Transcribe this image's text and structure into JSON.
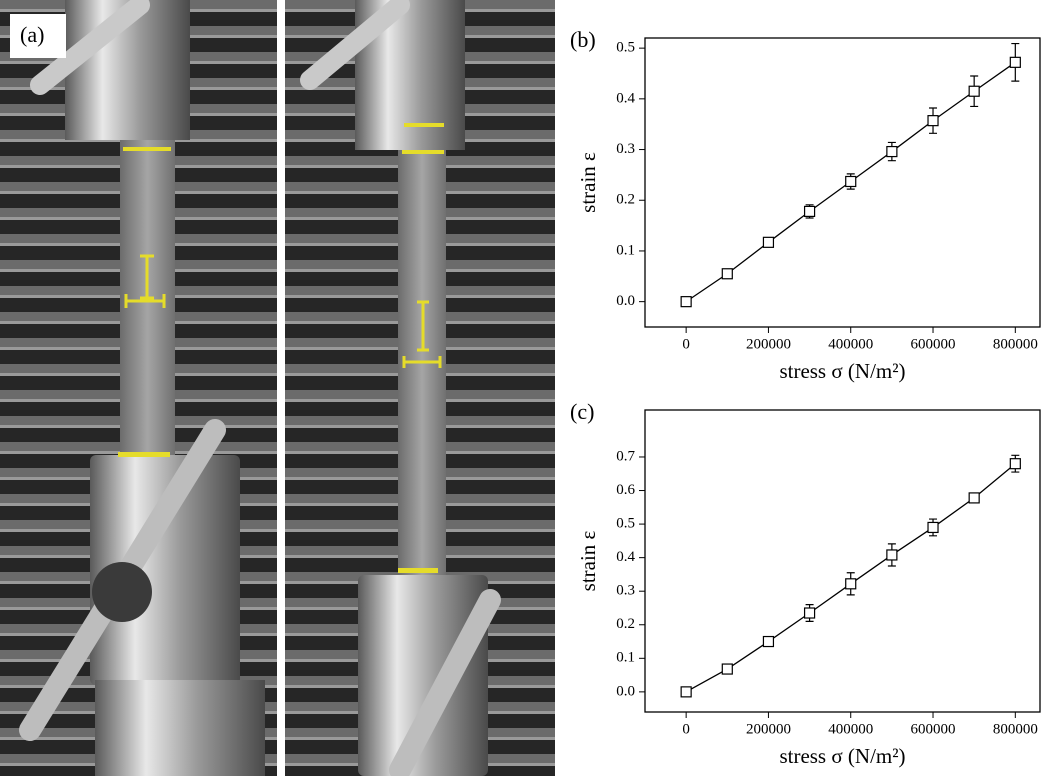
{
  "photo_label": "(a)",
  "chart_data": [
    {
      "type": "line",
      "panel_label": "(b)",
      "x_label": "stress σ (N/m²)",
      "y_label": "strain ε",
      "x": [
        0,
        100000,
        200000,
        300000,
        400000,
        500000,
        600000,
        700000,
        800000
      ],
      "series": [
        {
          "color": "#000000",
          "values": [
            0,
            0.055,
            0.117,
            0.178,
            0.237,
            0.296,
            0.357,
            0.415,
            0.472
          ],
          "error": [
            0.003,
            0.005,
            0.005,
            0.013,
            0.015,
            0.018,
            0.025,
            0.03,
            0.037
          ]
        }
      ],
      "xlim": [
        -100000,
        860000
      ],
      "ylim": [
        -0.05,
        0.52
      ],
      "xticks": [
        0,
        200000,
        400000,
        600000,
        800000
      ],
      "yticks": [
        {
          "value": 0,
          "label": "0.0"
        },
        0.1,
        0.2,
        0.3,
        0.4,
        0.5
      ]
    },
    {
      "type": "line",
      "panel_label": "(c)",
      "x_label": "stress σ (N/m²)",
      "y_label": "strain ε",
      "x": [
        0,
        100000,
        200000,
        300000,
        400000,
        500000,
        600000,
        700000,
        800000
      ],
      "series": [
        {
          "color": "#000000",
          "values": [
            0,
            0.068,
            0.15,
            0.235,
            0.322,
            0.408,
            0.49,
            0.578,
            0.68
          ],
          "error": [
            0.005,
            0.007,
            0.005,
            0.025,
            0.033,
            0.033,
            0.025,
            0.008,
            0.025
          ]
        }
      ],
      "xlim": [
        -100000,
        860000
      ],
      "ylim": [
        -0.06,
        0.84
      ],
      "xticks": [
        0,
        200000,
        400000,
        600000,
        800000
      ],
      "yticks": [
        {
          "value": 0,
          "label": "0.0"
        },
        0.1,
        0.2,
        0.3,
        0.4,
        0.5,
        0.6,
        0.7
      ]
    }
  ]
}
